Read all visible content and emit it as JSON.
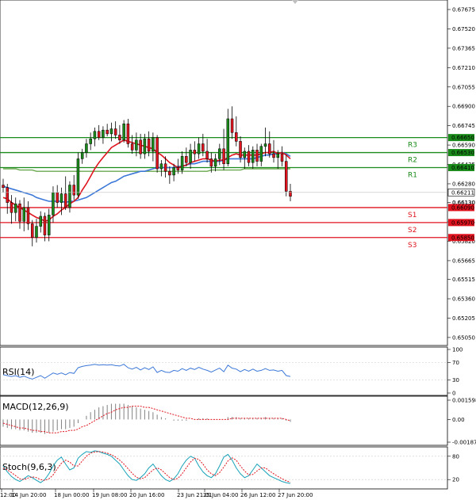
{
  "chart_data": [
    {
      "type": "candlestick",
      "colors": {
        "up": "#1a8a1a",
        "down": "#e0141e",
        "ma_fast": "#e0141e",
        "ma_slow": "#3c78d8",
        "ma_long": "#6aa84f"
      },
      "ylim": [
        0.65005,
        0.67675
      ],
      "price_ticks": [
        "0.67675",
        "0.67520",
        "0.67365",
        "0.67210",
        "0.67055",
        "0.66900",
        "0.66745",
        "0.66590",
        "0.66435",
        "0.66280",
        "0.66130",
        "0.65975",
        "0.65820",
        "0.65665",
        "0.65515",
        "0.65360",
        "0.65205",
        "0.65050"
      ],
      "x_labels": [
        "12:00",
        "14 Jun 20:00",
        "18 Jun 00:00",
        "19 Jun 08:00",
        "20 Jun 16:00",
        "23 Jun 21:01",
        "25 Jun 04:00",
        "26 Jun 12:00",
        "27 Jun 20:00"
      ],
      "levels": [
        {
          "name": "R3",
          "value": 0.6665,
          "label": "0.66650",
          "color": "#1a8a1a"
        },
        {
          "name": "R2",
          "value": 0.6653,
          "label": "0.66530",
          "color": "#1a8a1a"
        },
        {
          "name": "R1",
          "value": 0.6641,
          "label": "0.66410",
          "color": "#1a8a1a"
        },
        {
          "name": "S1",
          "value": 0.6609,
          "label": "0.66090",
          "color": "#e0141e"
        },
        {
          "name": "S2",
          "value": 0.6597,
          "label": "0.65970",
          "color": "#e0141e"
        },
        {
          "name": "S3",
          "value": 0.6585,
          "label": "0.65850",
          "color": "#e0141e"
        }
      ],
      "current_price": "0.66211",
      "current_price_value": 0.66211,
      "overlap_label": "0.66130",
      "candles": [
        [
          0.6627,
          0.6632,
          0.6621,
          0.6625
        ],
        [
          0.6625,
          0.6628,
          0.6604,
          0.6613
        ],
        [
          0.6613,
          0.6619,
          0.6596,
          0.6605
        ],
        [
          0.6605,
          0.6617,
          0.6598,
          0.6612
        ],
        [
          0.6612,
          0.6615,
          0.6592,
          0.6598
        ],
        [
          0.6598,
          0.6617,
          0.659,
          0.6609
        ],
        [
          0.6609,
          0.6614,
          0.6591,
          0.6596
        ],
        [
          0.6596,
          0.6599,
          0.6578,
          0.6585
        ],
        [
          0.6585,
          0.66,
          0.6581,
          0.6594
        ],
        [
          0.6594,
          0.6606,
          0.6589,
          0.6602
        ],
        [
          0.6602,
          0.6605,
          0.6582,
          0.6587
        ],
        [
          0.6587,
          0.6608,
          0.6582,
          0.6603
        ],
        [
          0.6603,
          0.6626,
          0.6597,
          0.6621
        ],
        [
          0.6621,
          0.6627,
          0.6609,
          0.6613
        ],
        [
          0.6613,
          0.6625,
          0.6603,
          0.662
        ],
        [
          0.662,
          0.6634,
          0.6607,
          0.6609
        ],
        [
          0.6609,
          0.663,
          0.6605,
          0.6627
        ],
        [
          0.6627,
          0.6635,
          0.6615,
          0.6619
        ],
        [
          0.6619,
          0.6653,
          0.6616,
          0.6648
        ],
        [
          0.6648,
          0.6656,
          0.6644,
          0.6653
        ],
        [
          0.6653,
          0.6664,
          0.6649,
          0.666
        ],
        [
          0.666,
          0.6669,
          0.6655,
          0.6664
        ],
        [
          0.6664,
          0.6673,
          0.6658,
          0.667
        ],
        [
          0.667,
          0.6675,
          0.6663,
          0.6665
        ],
        [
          0.6665,
          0.6674,
          0.666,
          0.6671
        ],
        [
          0.6671,
          0.6676,
          0.6666,
          0.6668
        ],
        [
          0.6668,
          0.6677,
          0.6662,
          0.6672
        ],
        [
          0.6672,
          0.6678,
          0.6664,
          0.6667
        ],
        [
          0.6667,
          0.6675,
          0.666,
          0.6663
        ],
        [
          0.6663,
          0.6679,
          0.6661,
          0.6676
        ],
        [
          0.6676,
          0.668,
          0.6657,
          0.666
        ],
        [
          0.666,
          0.6667,
          0.6652,
          0.6655
        ],
        [
          0.6655,
          0.6669,
          0.665,
          0.6663
        ],
        [
          0.6663,
          0.6668,
          0.6648,
          0.6652
        ],
        [
          0.6652,
          0.6668,
          0.6648,
          0.6664
        ],
        [
          0.6664,
          0.667,
          0.665,
          0.6654
        ],
        [
          0.6654,
          0.6669,
          0.6646,
          0.6665
        ],
        [
          0.6665,
          0.6667,
          0.6637,
          0.664
        ],
        [
          0.664,
          0.6647,
          0.6634,
          0.6644
        ],
        [
          0.6644,
          0.665,
          0.6633,
          0.6638
        ],
        [
          0.6638,
          0.6642,
          0.6628,
          0.6635
        ],
        [
          0.6635,
          0.6644,
          0.663,
          0.6641
        ],
        [
          0.6641,
          0.6648,
          0.6636,
          0.6639
        ],
        [
          0.6639,
          0.6654,
          0.6636,
          0.665
        ],
        [
          0.665,
          0.6657,
          0.6642,
          0.6645
        ],
        [
          0.6645,
          0.666,
          0.664,
          0.6655
        ],
        [
          0.6655,
          0.6662,
          0.6646,
          0.6652
        ],
        [
          0.6652,
          0.6665,
          0.6648,
          0.666
        ],
        [
          0.666,
          0.6668,
          0.665,
          0.6654
        ],
        [
          0.6654,
          0.6664,
          0.6645,
          0.6648
        ],
        [
          0.6648,
          0.6653,
          0.6637,
          0.6642
        ],
        [
          0.6642,
          0.6652,
          0.6638,
          0.6648
        ],
        [
          0.6648,
          0.666,
          0.6643,
          0.6656
        ],
        [
          0.6656,
          0.6672,
          0.6639,
          0.6644
        ],
        [
          0.6644,
          0.6688,
          0.6642,
          0.668
        ],
        [
          0.668,
          0.669,
          0.6664,
          0.6669
        ],
        [
          0.6669,
          0.6682,
          0.6658,
          0.6662
        ],
        [
          0.6662,
          0.6666,
          0.6645,
          0.6649
        ],
        [
          0.6649,
          0.6657,
          0.664,
          0.6654
        ],
        [
          0.6654,
          0.6659,
          0.6642,
          0.6645
        ],
        [
          0.6645,
          0.6658,
          0.664,
          0.6655
        ],
        [
          0.6655,
          0.666,
          0.6642,
          0.6646
        ],
        [
          0.6646,
          0.666,
          0.6642,
          0.6658
        ],
        [
          0.6658,
          0.6673,
          0.665,
          0.666
        ],
        [
          0.666,
          0.667,
          0.6649,
          0.6652
        ],
        [
          0.6652,
          0.6663,
          0.6645,
          0.6649
        ],
        [
          0.6649,
          0.6655,
          0.664,
          0.6652
        ],
        [
          0.6652,
          0.6658,
          0.6642,
          0.6646
        ],
        [
          0.6646,
          0.6651,
          0.6618,
          0.6622
        ],
        [
          0.6622,
          0.6628,
          0.6614,
          0.6618
        ]
      ],
      "ma_fast": [
        0.6617,
        0.6616,
        0.6613,
        0.6611,
        0.6609,
        0.6607,
        0.6605,
        0.6603,
        0.6601,
        0.66,
        0.6598,
        0.6599,
        0.6602,
        0.6604,
        0.6607,
        0.6609,
        0.6612,
        0.6614,
        0.6617,
        0.6623,
        0.6628,
        0.6634,
        0.664,
        0.6645,
        0.6649,
        0.6653,
        0.6657,
        0.6659,
        0.6661,
        0.6663,
        0.6662,
        0.6661,
        0.666,
        0.6659,
        0.6658,
        0.6657,
        0.6656,
        0.6653,
        0.6651,
        0.6648,
        0.6645,
        0.6643,
        0.6641,
        0.6642,
        0.6643,
        0.6645,
        0.6646,
        0.6647,
        0.6648,
        0.6648,
        0.6647,
        0.6646,
        0.6647,
        0.6647,
        0.6649,
        0.6651,
        0.6652,
        0.6651,
        0.6651,
        0.6651,
        0.6651,
        0.6651,
        0.6652,
        0.6653,
        0.6653,
        0.6654,
        0.6652,
        0.6653,
        0.6651,
        0.6648
      ],
      "ma_slow": [
        0.6626,
        0.6625,
        0.6624,
        0.6623,
        0.6622,
        0.6621,
        0.662,
        0.6619,
        0.6617,
        0.6616,
        0.6615,
        0.6614,
        0.6614,
        0.6614,
        0.6614,
        0.6613,
        0.6614,
        0.6614,
        0.6615,
        0.6616,
        0.6617,
        0.6619,
        0.6621,
        0.6623,
        0.6625,
        0.6627,
        0.6629,
        0.663,
        0.6632,
        0.6634,
        0.6635,
        0.6636,
        0.6637,
        0.6638,
        0.6638,
        0.6639,
        0.664,
        0.6641,
        0.6641,
        0.6641,
        0.6641,
        0.6641,
        0.6642,
        0.6642,
        0.6643,
        0.6644,
        0.6644,
        0.6645,
        0.6646,
        0.6646,
        0.6646,
        0.6646,
        0.6646,
        0.6647,
        0.6648,
        0.6648,
        0.6648,
        0.6648,
        0.6648,
        0.6648,
        0.6648,
        0.6649,
        0.665,
        0.6651,
        0.6651,
        0.6652,
        0.6652,
        0.6653,
        0.6652,
        0.665
      ],
      "ma_long": [
        0.664,
        0.664,
        0.664,
        0.664,
        0.6639,
        0.6639,
        0.6639,
        0.6639,
        0.6638,
        0.6638,
        0.6638,
        0.6638,
        0.6638,
        0.6638,
        0.6638,
        0.6638,
        0.6638,
        0.6638,
        0.6638,
        0.6638,
        0.6638,
        0.6638,
        0.6638,
        0.6638,
        0.6638,
        0.6638,
        0.6638,
        0.6638,
        0.6638,
        0.6638,
        0.6638,
        0.6638,
        0.6638,
        0.6638,
        0.6638,
        0.6638,
        0.6638,
        0.6638,
        0.6638,
        0.6638,
        0.6638,
        0.6638,
        0.6638,
        0.6638,
        0.6638,
        0.6638,
        0.6638,
        0.6638,
        0.6638,
        0.6638,
        0.6639,
        0.6639,
        0.6639,
        0.6639,
        0.6639,
        0.6639,
        0.6639,
        0.6639,
        0.664,
        0.664,
        0.664,
        0.664,
        0.664,
        0.664,
        0.664,
        0.664,
        0.664,
        0.664,
        0.664,
        0.664
      ]
    },
    {
      "type": "line",
      "title": "RSI(14)",
      "ylim": [
        0,
        100
      ],
      "ticks": [
        "100",
        "70",
        "30",
        "0"
      ],
      "tick_values": [
        100,
        70,
        30,
        0
      ],
      "color": "#3c78d8",
      "values": [
        42,
        40,
        38,
        40,
        36,
        39,
        35,
        32,
        36,
        40,
        34,
        40,
        46,
        43,
        46,
        42,
        47,
        45,
        58,
        61,
        63,
        64,
        66,
        64,
        65,
        64,
        65,
        63,
        62,
        66,
        58,
        55,
        59,
        53,
        58,
        54,
        60,
        47,
        52,
        48,
        47,
        52,
        50,
        56,
        52,
        57,
        54,
        59,
        55,
        52,
        48,
        53,
        57,
        49,
        64,
        57,
        55,
        49,
        54,
        50,
        55,
        50,
        52,
        56,
        52,
        53,
        50,
        52,
        40,
        38
      ]
    },
    {
      "type": "bar_line",
      "title": "MACD(12,26,9)",
      "ylim": [
        -0.001876,
        0.001598
      ],
      "ticks": [
        "0.001598",
        "0.00",
        "-0.001876"
      ],
      "tick_values": [
        0.001598,
        0,
        -0.001876
      ],
      "bar_color": "#808080",
      "signal_color": "#e0141e",
      "histogram": [
        -0.0006,
        -0.0007,
        -0.0008,
        -0.0008,
        -0.0009,
        -0.0009,
        -0.001,
        -0.0011,
        -0.0011,
        -0.0011,
        -0.0012,
        -0.0011,
        -0.001,
        -0.0009,
        -0.0008,
        -0.0008,
        -0.0007,
        -0.0006,
        -0.0003,
        0.0,
        0.0003,
        0.0006,
        0.0008,
        0.001,
        0.0011,
        0.0012,
        0.0013,
        0.0013,
        0.0013,
        0.0013,
        0.0012,
        0.0011,
        0.001,
        0.0009,
        0.0008,
        0.0007,
        0.0006,
        0.0004,
        0.0002,
        0.0001,
        0.0,
        -0.0001,
        -0.0001,
        -0.0001,
        -0.0001,
        0.0,
        0.0,
        0.0001,
        0.0001,
        0.0001,
        0.0,
        0.0,
        0.0,
        0.0,
        0.0002,
        0.0002,
        0.0002,
        0.0001,
        0.0001,
        0.0001,
        0.0001,
        0.0001,
        0.0001,
        0.0002,
        0.0001,
        0.0001,
        0.0001,
        0.0001,
        -0.0001,
        -0.0002
      ],
      "signal": [
        -0.0003,
        -0.0004,
        -0.0005,
        -0.0006,
        -0.0007,
        -0.0007,
        -0.0008,
        -0.0009,
        -0.0009,
        -0.001,
        -0.001,
        -0.0011,
        -0.0011,
        -0.0011,
        -0.001,
        -0.001,
        -0.0009,
        -0.0009,
        -0.0008,
        -0.0006,
        -0.0005,
        -0.0003,
        -0.0001,
        0.0001,
        0.0003,
        0.0005,
        0.0006,
        0.0008,
        0.0009,
        0.001,
        0.001,
        0.0011,
        0.0011,
        0.0011,
        0.001,
        0.001,
        0.0009,
        0.0008,
        0.0007,
        0.0006,
        0.0005,
        0.0004,
        0.0003,
        0.0002,
        0.0001,
        0.0001,
        0.0,
        0.0,
        0.0,
        0.0,
        0.0,
        0.0,
        0.0,
        0.0,
        0.0,
        0.0001,
        0.0001,
        0.0001,
        0.0001,
        0.0001,
        0.0001,
        0.0001,
        0.0001,
        0.0001,
        0.0001,
        0.0001,
        0.0001,
        0.0001,
        0.0,
        -0.0001
      ]
    },
    {
      "type": "line",
      "title": "Stoch(9,6,3)",
      "ylim": [
        0,
        100
      ],
      "ticks": [
        "80",
        "20"
      ],
      "tick_values": [
        80,
        20
      ],
      "k_color": "#17a2b8",
      "d_color": "#e0141e",
      "k": [
        55,
        40,
        28,
        20,
        15,
        22,
        30,
        25,
        18,
        12,
        20,
        35,
        55,
        70,
        78,
        60,
        45,
        50,
        75,
        85,
        92,
        90,
        94,
        92,
        88,
        85,
        80,
        70,
        60,
        45,
        30,
        20,
        18,
        25,
        35,
        50,
        60,
        45,
        30,
        20,
        15,
        22,
        35,
        55,
        70,
        80,
        75,
        55,
        40,
        30,
        25,
        35,
        55,
        78,
        85,
        70,
        50,
        35,
        25,
        30,
        45,
        60,
        50,
        40,
        30,
        25,
        20,
        15,
        12,
        10
      ],
      "d": [
        50,
        45,
        38,
        30,
        22,
        20,
        24,
        27,
        25,
        20,
        18,
        22,
        32,
        48,
        62,
        70,
        65,
        55,
        55,
        68,
        80,
        88,
        91,
        92,
        91,
        88,
        84,
        78,
        70,
        60,
        48,
        36,
        26,
        22,
        25,
        35,
        45,
        50,
        45,
        35,
        25,
        20,
        23,
        35,
        50,
        65,
        75,
        72,
        60,
        45,
        35,
        30,
        38,
        52,
        68,
        76,
        70,
        55,
        42,
        32,
        33,
        42,
        50,
        50,
        42,
        35,
        28,
        22,
        17,
        13
      ]
    }
  ]
}
